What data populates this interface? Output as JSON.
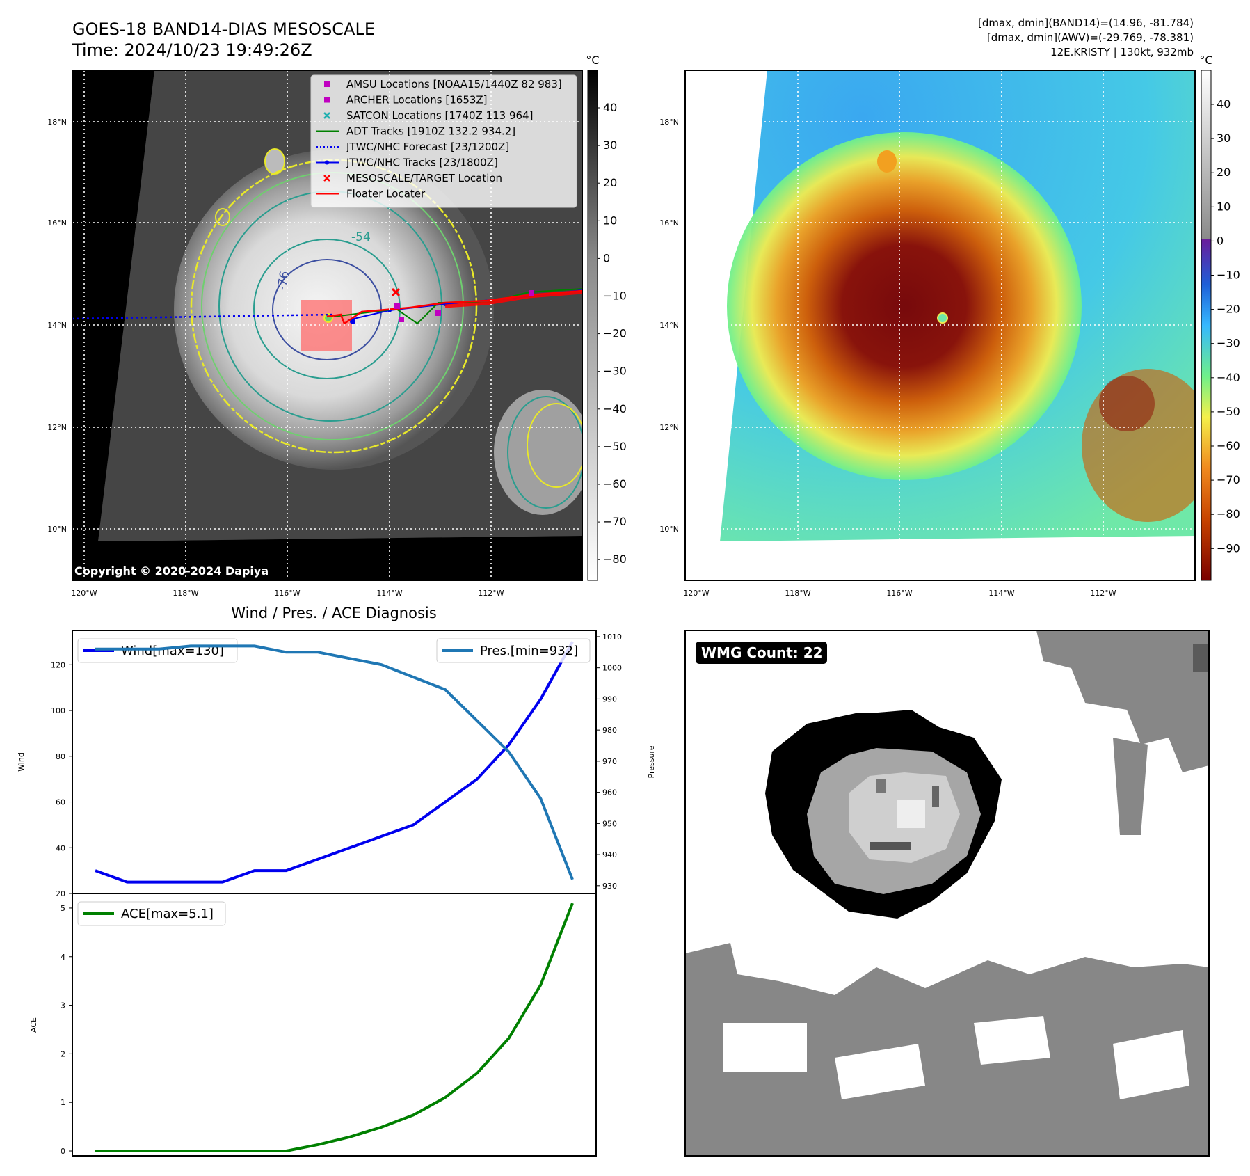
{
  "header": {
    "title_line1": "GOES-18 BAND14-DIAS MESOSCALE",
    "title_line2": "Time: 2024/10/23 19:49:26Z",
    "info_line1": "[dmax, dmin](BAND14)=(14.96, -81.784)",
    "info_line2": "[dmax, dmin](AWV)=(-29.769, -78.381)",
    "info_line3": "12E.KRISTY | 130kt, 932mb"
  },
  "map": {
    "lat_labels": [
      "18°N",
      "16°N",
      "14°N",
      "12°N",
      "10°N"
    ],
    "lon_labels": [
      "120°W",
      "118°W",
      "116°W",
      "114°W",
      "112°W"
    ],
    "copyright": "Copyright © 2020-2024 Dapiya",
    "contour_labels": [
      "-76",
      "-54"
    ],
    "colors": {
      "contour_outer": "#e8e82a",
      "contour_mid": "#6fcf6f",
      "contour_inner": "#2a9d8f",
      "contour_core": "#3b4ea0"
    }
  },
  "legend": [
    {
      "label": "AMSU Locations [NOAA15/1440Z 82 983]",
      "marker": "square",
      "color": "#c000c0"
    },
    {
      "label": "ARCHER Locations [1653Z]",
      "marker": "square",
      "color": "#c000c0"
    },
    {
      "label": "SATCON Locations [1740Z 113 964]",
      "marker": "x",
      "color": "#20b0b0"
    },
    {
      "label": "ADT Tracks [1910Z 132.2 934.2]",
      "marker": "line",
      "color": "#008000"
    },
    {
      "label": "JTWC/NHC Forecast [23/1200Z]",
      "marker": "dotted",
      "color": "#0000ee"
    },
    {
      "label": "JTWC/NHC Tracks [23/1800Z]",
      "marker": "line-dot",
      "color": "#0000ee"
    },
    {
      "label": "MESOSCALE/TARGET Location",
      "marker": "x",
      "color": "#ff0000"
    },
    {
      "label": "Floater Locater",
      "marker": "line",
      "color": "#ff0000"
    }
  ],
  "colorbar_gray": {
    "unit": "°C",
    "ticks": [
      "40",
      "30",
      "20",
      "10",
      "0",
      "−10",
      "−20",
      "−30",
      "−40",
      "−50",
      "−60",
      "−70",
      "−80"
    ]
  },
  "colorbar_color": {
    "unit": "°C",
    "ticks": [
      "40",
      "30",
      "20",
      "10",
      "0",
      "−10",
      "−20",
      "−30",
      "−40",
      "−50",
      "−60",
      "−70",
      "−80",
      "−90"
    ]
  },
  "chart_data": [
    {
      "type": "line",
      "title": "Wind / Pres. / ACE Diagnosis",
      "xlabel": "",
      "ylabel": "Wind",
      "ylabel_right": "Pressure",
      "x": [
        0,
        1,
        2,
        3,
        4,
        5,
        6,
        7,
        8,
        9,
        10,
        11,
        12,
        13,
        14,
        15
      ],
      "ylim": [
        20,
        135
      ],
      "ylim_right": [
        927.5,
        1012
      ],
      "yticks": [
        "20",
        "40",
        "60",
        "80",
        "100",
        "120"
      ],
      "yticks_right": [
        "930",
        "940",
        "950",
        "960",
        "970",
        "980",
        "990",
        "1000",
        "1010"
      ],
      "series": [
        {
          "name": "Wind[max=130]",
          "color": "#0000ee",
          "axis": "left",
          "values": [
            30,
            25,
            25,
            25,
            25,
            30,
            30,
            35,
            40,
            45,
            50,
            60,
            70,
            85,
            105,
            130
          ]
        },
        {
          "name": "Pres.[min=932]",
          "color": "#1f77b4",
          "axis": "right",
          "values": [
            1006,
            1006,
            1006,
            1007,
            1007,
            1007,
            1005,
            1005,
            1003,
            1001,
            997,
            993,
            983,
            973,
            958,
            932
          ]
        }
      ]
    },
    {
      "type": "line",
      "title": "",
      "xlabel": "",
      "ylabel": "ACE",
      "x": [
        0,
        1,
        2,
        3,
        4,
        5,
        6,
        7,
        8,
        9,
        10,
        11,
        12,
        13,
        14,
        15
      ],
      "ylim": [
        -0.1,
        5.3
      ],
      "yticks": [
        "0",
        "1",
        "2",
        "3",
        "4",
        "5"
      ],
      "series": [
        {
          "name": "ACE[max=5.1]",
          "color": "#008000",
          "values": [
            0,
            0,
            0,
            0,
            0,
            0,
            0,
            0.13,
            0.29,
            0.49,
            0.74,
            1.1,
            1.6,
            2.32,
            3.42,
            5.1
          ]
        }
      ]
    }
  ],
  "wmg": {
    "badge": "WMG Count: 22"
  }
}
